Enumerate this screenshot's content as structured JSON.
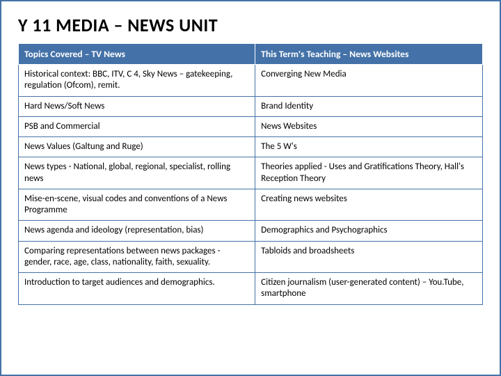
{
  "title": "Y 11 MEDIA – NEWS UNIT",
  "table": {
    "type": "table",
    "header_bg": "#4472a8",
    "header_color": "#ffffff",
    "cell_bg": "#ffffff",
    "cell_color": "#000000",
    "border_color": "#4472a8",
    "header_fontsize": 13.5,
    "cell_fontsize": 13,
    "columns": [
      {
        "label": "Topics Covered – TV News",
        "width_pct": 51
      },
      {
        "label": "This Term's Teaching – News Websites",
        "width_pct": 49
      }
    ],
    "rows": [
      {
        "left": "Historical context: BBC, ITV, C 4, Sky News – gatekeeping, regulation (Ofcom), remit.",
        "right": "Converging New Media"
      },
      {
        "left": "Hard News/Soft News",
        "right": "Brand Identity"
      },
      {
        "left": "PSB and Commercial",
        "right": "News Websites"
      },
      {
        "left": "News Values (Galtung and Ruge)",
        "right": "The 5 W's"
      },
      {
        "left": "News types - National, global, regional, specialist, rolling news",
        "right": "Theories applied - Uses and Gratifications Theory, Hall's Reception Theory"
      },
      {
        "left": "Mise-en-scene, visual codes and conventions of a News Programme",
        "right": "Creating news websites"
      },
      {
        "left": "News agenda and ideology (representation, bias)",
        "right": "Demographics and Psychographics"
      },
      {
        "left": "Comparing representations between news packages - gender, race, age, class, nationality, faith, sexuality.",
        "right": "Tabloids and broadsheets"
      },
      {
        "left": "Introduction to target audiences and demographics.",
        "right": "Citizen journalism  (user-generated content) – You.Tube, smartphone"
      }
    ]
  }
}
